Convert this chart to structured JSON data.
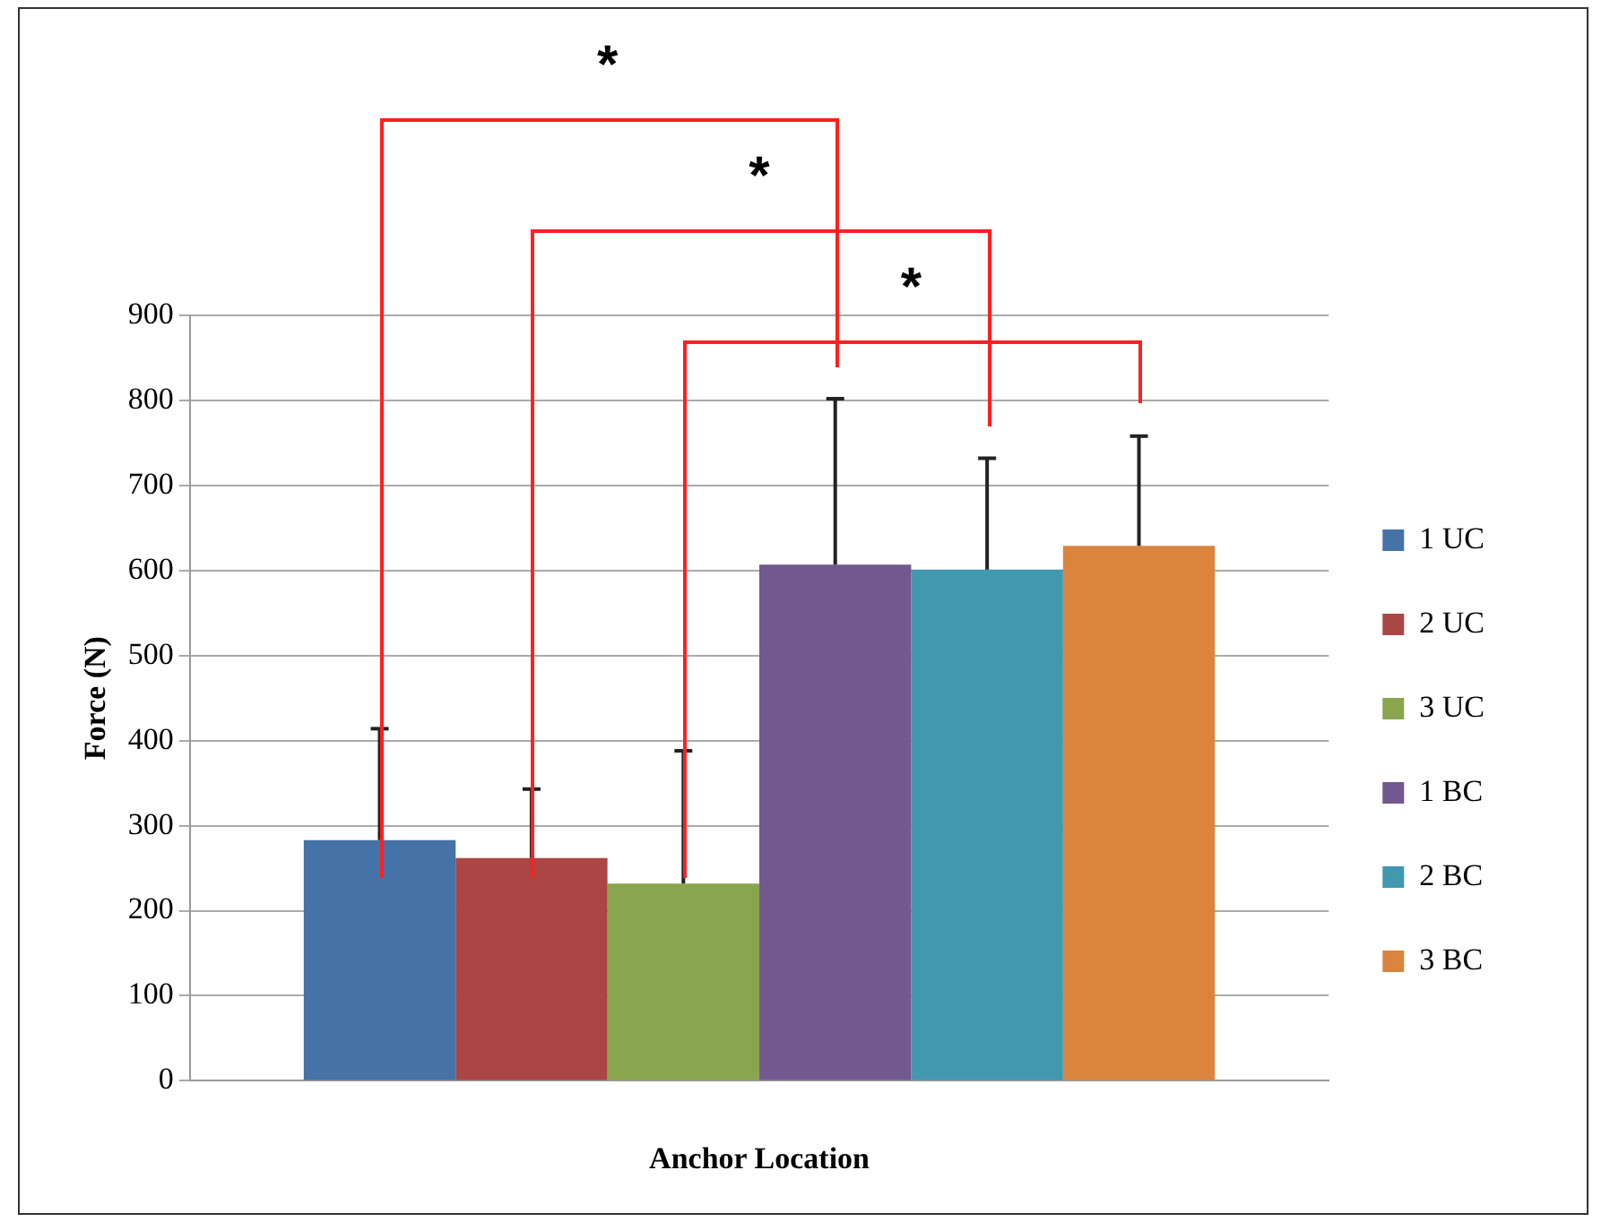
{
  "chart_data": {
    "type": "bar",
    "xlabel": "Anchor Location",
    "ylabel": "Force (N)",
    "categories": [
      null
    ],
    "series": [
      {
        "name": "1 UC",
        "color": "#4572a7",
        "values": [
          283
        ],
        "errors": [
          [
            283,
            414
          ]
        ]
      },
      {
        "name": "2 UC",
        "color": "#aa4643",
        "values": [
          262
        ],
        "errors": [
          [
            262,
            343
          ]
        ]
      },
      {
        "name": "3 UC",
        "color": "#89a54e",
        "values": [
          232
        ],
        "errors": [
          [
            232,
            388
          ]
        ]
      },
      {
        "name": "1 BC",
        "color": "#71588f",
        "values": [
          607
        ],
        "errors": [
          [
            607,
            802
          ]
        ]
      },
      {
        "name": "2 BC",
        "color": "#4198af",
        "values": [
          601
        ],
        "errors": [
          [
            601,
            732
          ]
        ]
      },
      {
        "name": "3 BC",
        "color": "#db843d",
        "values": [
          629
        ],
        "errors": [
          [
            629,
            758
          ]
        ]
      }
    ],
    "ylim": [
      0,
      900
    ],
    "yticks": [
      0,
      100,
      200,
      300,
      400,
      500,
      600,
      700,
      800,
      900
    ],
    "grid": "y",
    "legend": "right",
    "annotations": [
      "*",
      "*",
      "*"
    ]
  }
}
